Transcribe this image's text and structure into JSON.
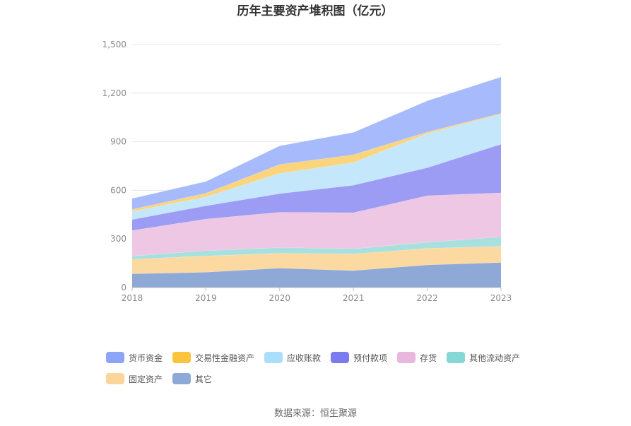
{
  "chart_data": {
    "type": "area",
    "stacked": true,
    "title": "历年主要资产堆积图（亿元）",
    "x": [
      "2018",
      "2019",
      "2020",
      "2021",
      "2022",
      "2023"
    ],
    "ylim": [
      0,
      1500
    ],
    "yticks": [
      0,
      300,
      600,
      900,
      1200,
      1500
    ],
    "ytick_labels": [
      "0",
      "300",
      "600",
      "900",
      "1,200",
      "1,500"
    ],
    "grid": true,
    "legend_position": "bottom",
    "series": [
      {
        "name": "其它",
        "color": "#8fa9d6",
        "values": [
          85,
          95,
          120,
          105,
          140,
          155
        ]
      },
      {
        "name": "固定资产",
        "color": "#fcd9a0",
        "values": [
          90,
          100,
          92,
          103,
          102,
          100
        ]
      },
      {
        "name": "其他流动资产",
        "color": "#a8e0e0",
        "values": [
          20,
          33,
          35,
          32,
          38,
          58
        ]
      },
      {
        "name": "存货",
        "color": "#edc7e3",
        "values": [
          157,
          195,
          218,
          222,
          287,
          272
        ]
      },
      {
        "name": "预付款项",
        "color": "#9c9cf5",
        "values": [
          68,
          82,
          115,
          170,
          173,
          300
        ]
      },
      {
        "name": "应收账款",
        "color": "#c4e7fb",
        "values": [
          50,
          55,
          125,
          140,
          210,
          185
        ]
      },
      {
        "name": "交易性金融资产",
        "color": "#fbd47e",
        "values": [
          13,
          22,
          55,
          48,
          10,
          5
        ]
      },
      {
        "name": "货币资金",
        "color": "#a7bafb",
        "values": [
          67,
          73,
          115,
          138,
          193,
          225
        ]
      }
    ],
    "legend_order": [
      "货币资金",
      "交易性金融资产",
      "应收账款",
      "预付款项",
      "存货",
      "其他流动资产",
      "固定资产",
      "其它"
    ],
    "legend_colors": {
      "货币资金": "#8ca5f7",
      "交易性金融资产": "#fbc43e",
      "应收账款": "#a9dffb",
      "预付款项": "#7b7bf0",
      "存货": "#eab7dc",
      "其他流动资产": "#86d7d7",
      "固定资产": "#fcd59a",
      "其它": "#8ea9d6"
    }
  },
  "source_text": "数据来源：恒生聚源"
}
